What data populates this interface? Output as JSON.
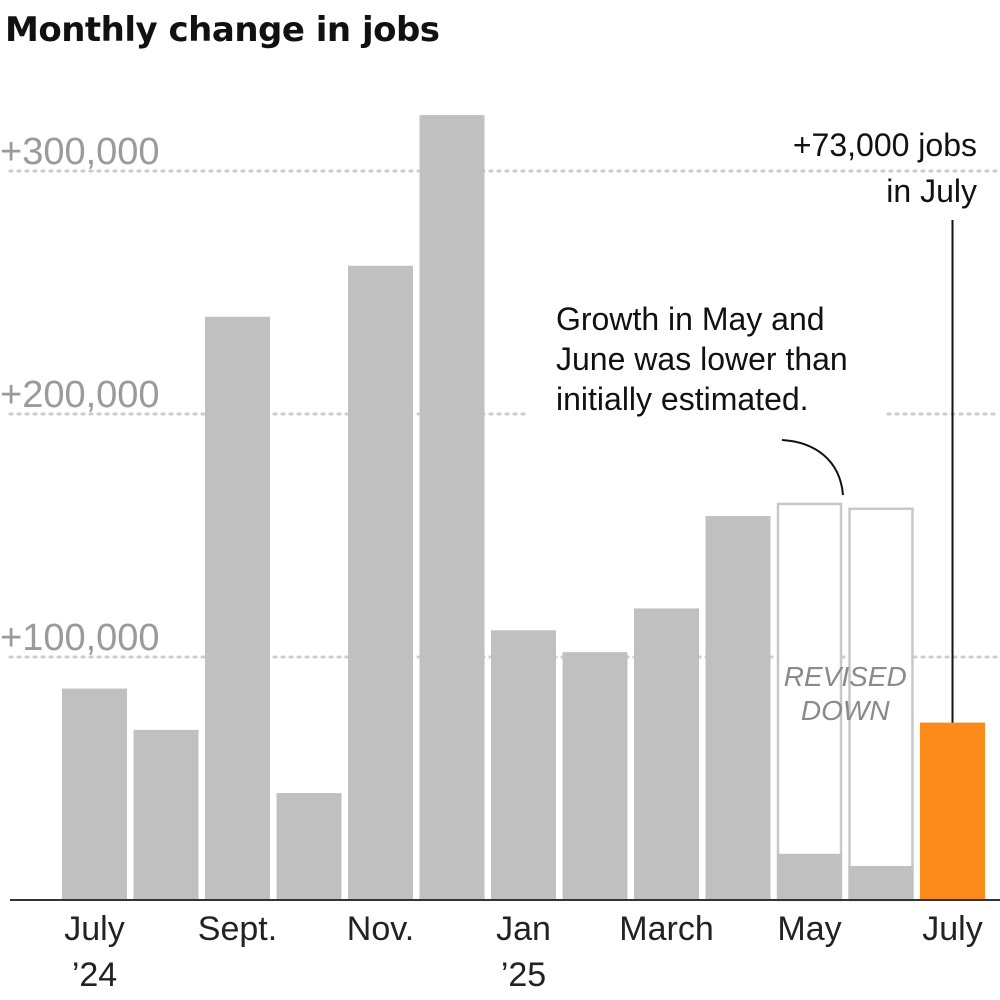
{
  "chart_data": {
    "type": "bar",
    "title": "Monthly change in jobs",
    "xlabel": "",
    "ylabel": "",
    "ylim": [
      0,
      330000
    ],
    "y_ticks": [
      {
        "value": 100000,
        "label": "+100,000"
      },
      {
        "value": 200000,
        "label": "+200,000"
      },
      {
        "value": 300000,
        "label": "+300,000"
      }
    ],
    "grid": "dotted horizontal",
    "x_tick_labels": [
      {
        "index": 0,
        "lines": [
          "July",
          "’24"
        ]
      },
      {
        "index": 2,
        "lines": [
          "Sept."
        ]
      },
      {
        "index": 4,
        "lines": [
          "Nov."
        ]
      },
      {
        "index": 6,
        "lines": [
          "Jan",
          "’25"
        ]
      },
      {
        "index": 8,
        "lines": [
          "March"
        ]
      },
      {
        "index": 10,
        "lines": [
          "May"
        ]
      },
      {
        "index": 12,
        "lines": [
          "July"
        ]
      }
    ],
    "categories": [
      "Jul 2024",
      "Aug 2024",
      "Sep 2024",
      "Oct 2024",
      "Nov 2024",
      "Dec 2024",
      "Jan 2025",
      "Feb 2025",
      "Mar 2025",
      "Apr 2025",
      "May 2025",
      "Jun 2025",
      "Jul 2025"
    ],
    "values": [
      87000,
      70000,
      240000,
      44000,
      261000,
      323000,
      111000,
      102000,
      120000,
      158000,
      19000,
      14000,
      73000
    ],
    "initial_estimates": [
      null,
      null,
      null,
      null,
      null,
      null,
      null,
      null,
      null,
      null,
      163000,
      161000,
      null
    ],
    "highlight_index": 12,
    "colors": {
      "bar": "#c0c0c0",
      "highlight": "#fb8a1a",
      "revised_outline": "#c8c8c8",
      "grid": "#cccccc",
      "axis": "#333333"
    },
    "annotations": {
      "highlight_label": [
        "+73,000 jobs",
        "in July"
      ],
      "revision_note": [
        "Growth in May and",
        "June was lower than",
        "initially estimated."
      ],
      "revised_label": [
        "REVISED",
        "DOWN"
      ]
    }
  }
}
